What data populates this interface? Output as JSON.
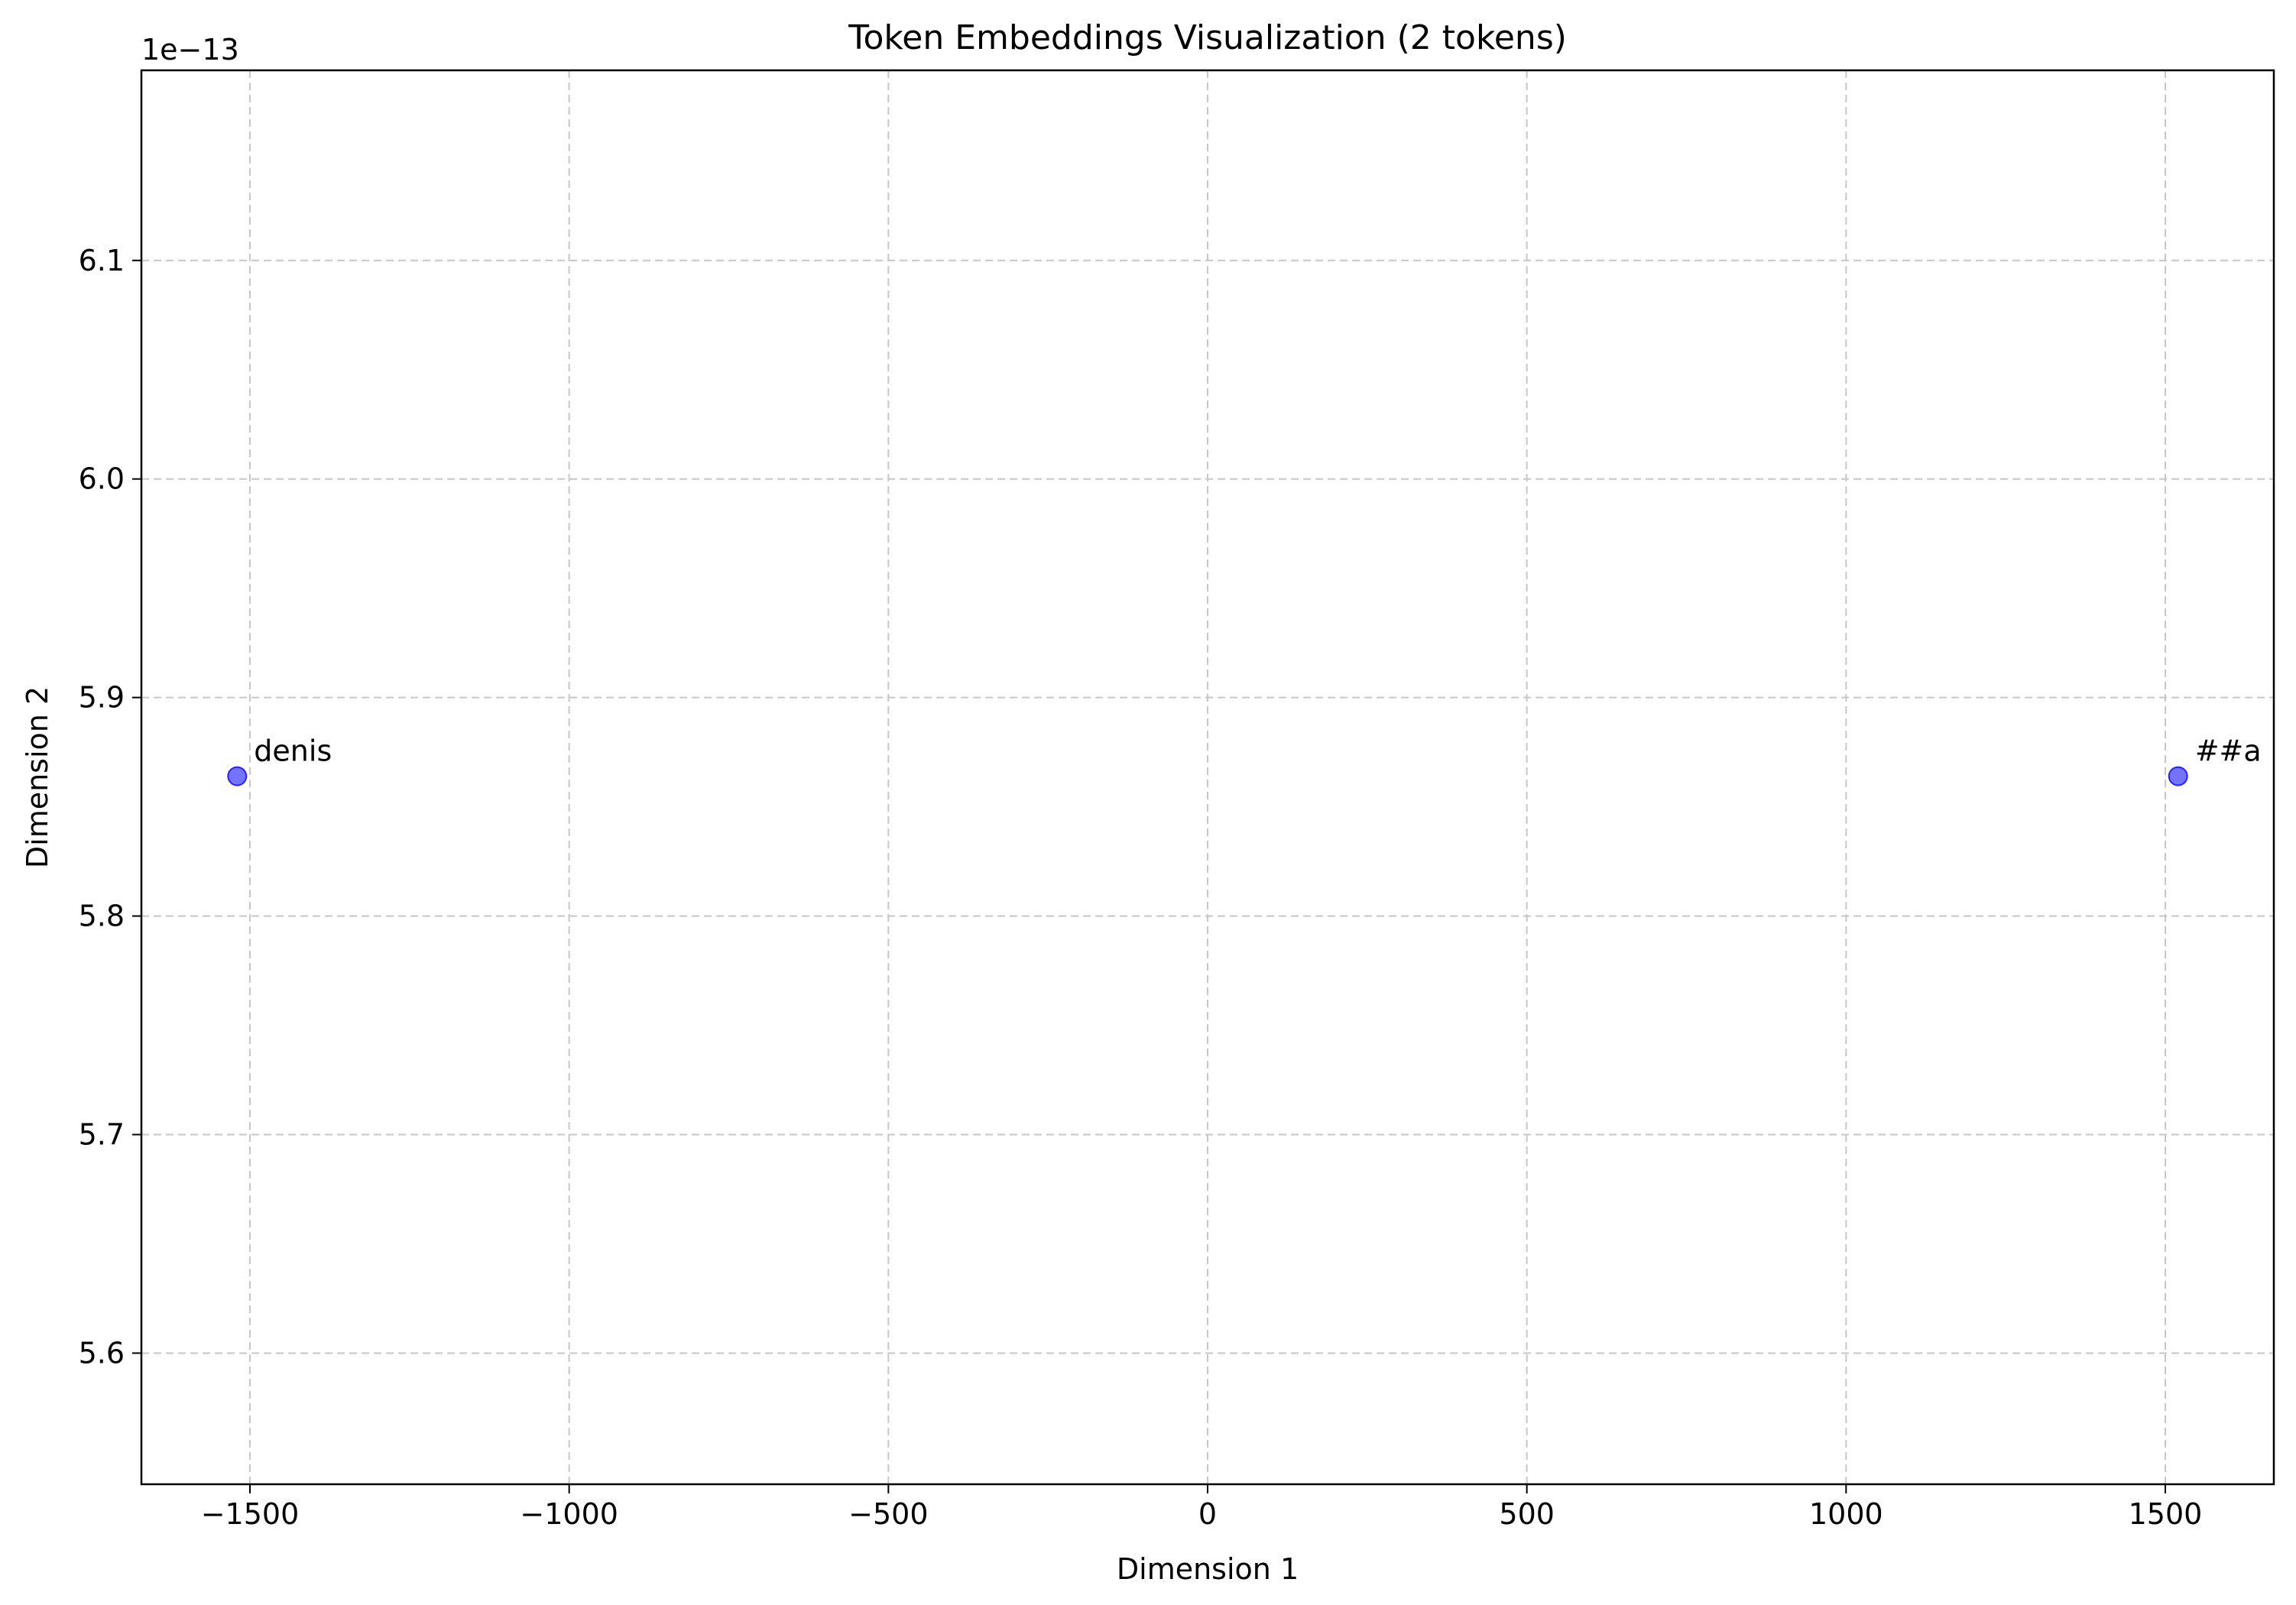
{
  "chart_data": {
    "type": "scatter",
    "title": "Token Embeddings Visualization (2 tokens)",
    "xlabel": "Dimension 1",
    "ylabel": "Dimension 2",
    "y_offset_label": "1e−13",
    "y_scale_exponent": -13,
    "xlim": [
      -1670,
      1670
    ],
    "ylim": [
      5.54,
      6.187
    ],
    "x_ticks": [
      -1500,
      -1000,
      -500,
      0,
      500,
      1000,
      1500
    ],
    "x_tick_labels": [
      "−1500",
      "−1000",
      "−500",
      "0",
      "500",
      "1000",
      "1500"
    ],
    "y_ticks": [
      5.6,
      5.7,
      5.8,
      5.9,
      6.0,
      6.1
    ],
    "y_tick_labels": [
      "5.6",
      "5.7",
      "5.8",
      "5.9",
      "6.0",
      "6.1"
    ],
    "grid": true,
    "points": [
      {
        "label": "denis",
        "x": -1520,
        "y": 5.864
      },
      {
        "label": "##a",
        "x": 1520,
        "y": 5.864
      }
    ],
    "marker_color": "#0000ff",
    "marker_fill_opacity": 0.55,
    "grid_color": "#c7c7c7"
  }
}
